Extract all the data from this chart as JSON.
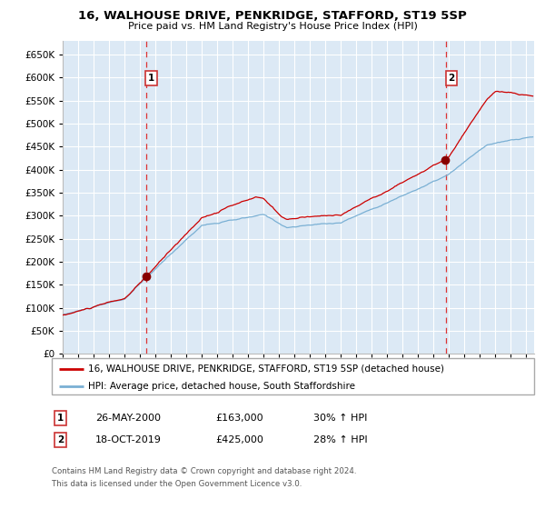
{
  "title": "16, WALHOUSE DRIVE, PENKRIDGE, STAFFORD, ST19 5SP",
  "subtitle": "Price paid vs. HM Land Registry's House Price Index (HPI)",
  "legend_line1": "16, WALHOUSE DRIVE, PENKRIDGE, STAFFORD, ST19 5SP (detached house)",
  "legend_line2": "HPI: Average price, detached house, South Staffordshire",
  "transaction1_date": "26-MAY-2000",
  "transaction1_price": 163000,
  "transaction1_pct": "30%",
  "transaction2_date": "18-OCT-2019",
  "transaction2_price": 425000,
  "transaction2_pct": "28%",
  "footnote1": "Contains HM Land Registry data © Crown copyright and database right 2024.",
  "footnote2": "This data is licensed under the Open Government Licence v3.0.",
  "red_color": "#cc0000",
  "blue_color": "#7ab0d4",
  "bg_color": "#dce9f5",
  "grid_color": "#ffffff",
  "vline_color": "#dd3333",
  "marker_color": "#880000",
  "ylim": [
    0,
    680000
  ],
  "yticks": [
    0,
    50000,
    100000,
    150000,
    200000,
    250000,
    300000,
    350000,
    400000,
    450000,
    500000,
    550000,
    600000,
    650000
  ],
  "start_year": 1995.0,
  "end_year": 2025.5,
  "transaction1_x": 2000.38,
  "transaction2_x": 2019.79
}
